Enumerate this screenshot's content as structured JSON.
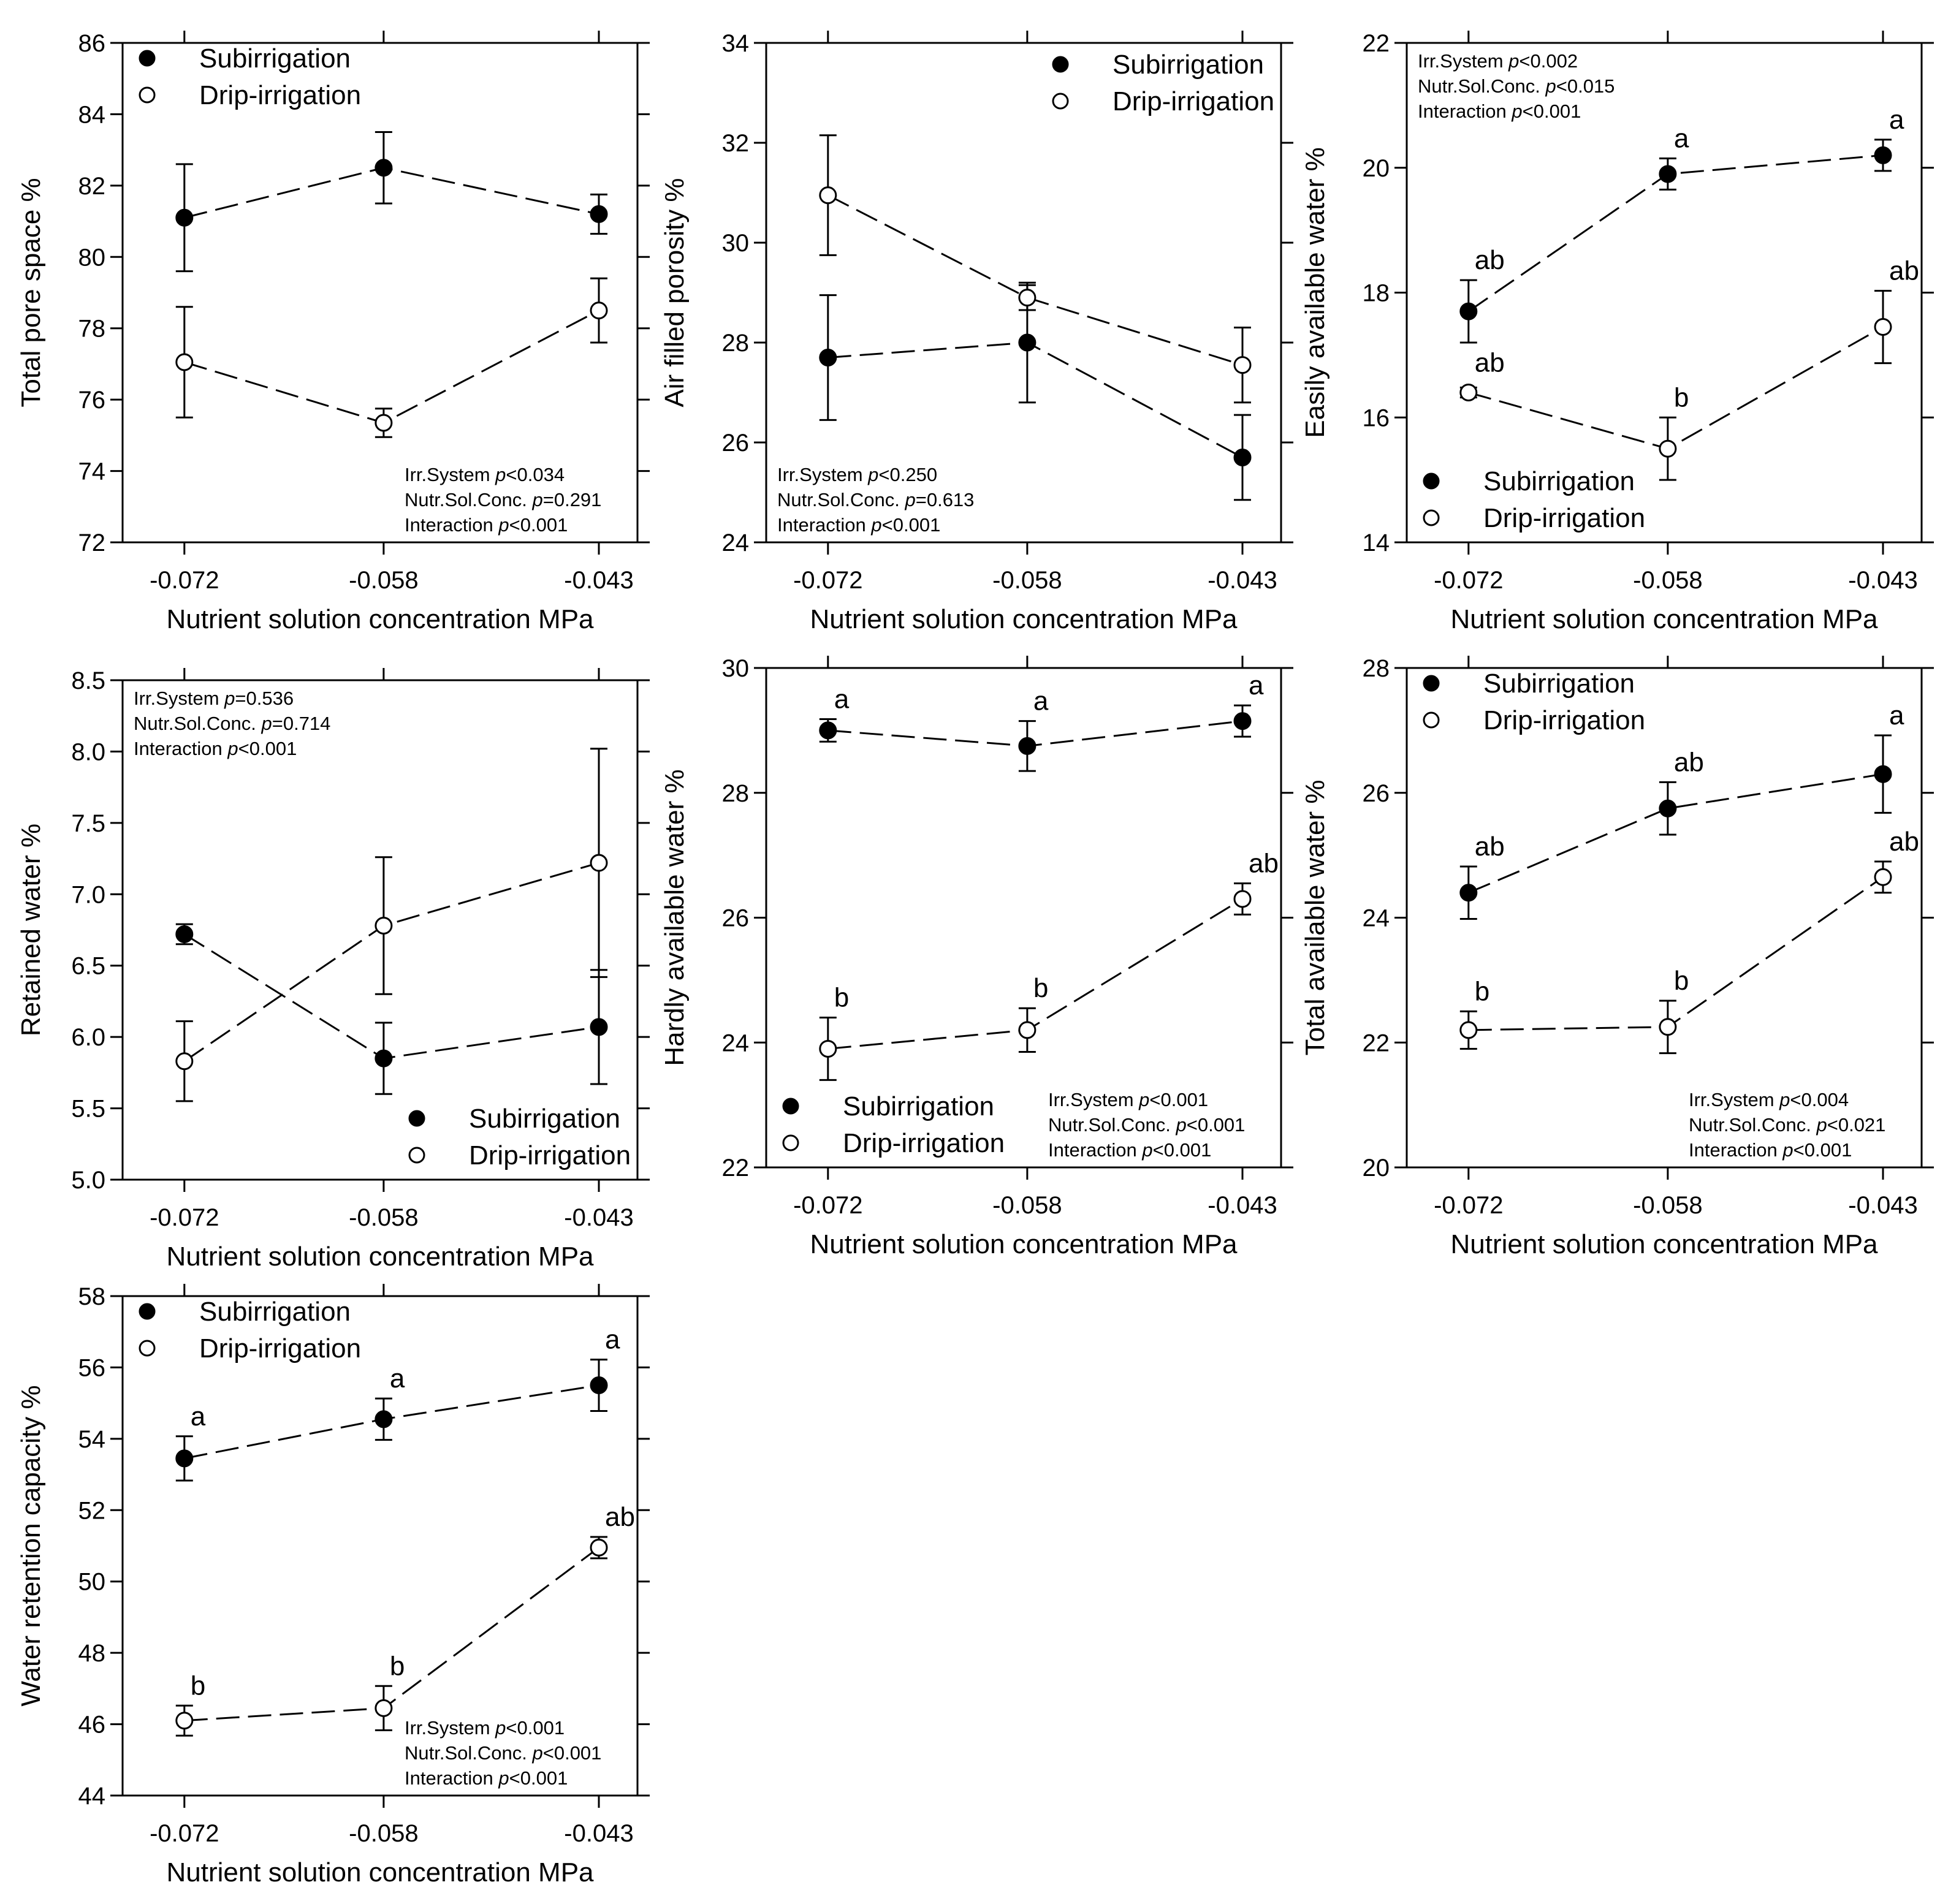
{
  "chart_data": [
    {
      "id": "tps",
      "type": "line",
      "title": "",
      "xlabel": "Nutrient solution concentration MPa",
      "ylabel": "Total pore space %",
      "categories": [
        "-0.072",
        "-0.058",
        "-0.043"
      ],
      "ylim": [
        72,
        86
      ],
      "yticks": [
        72,
        74,
        76,
        78,
        80,
        82,
        84,
        86
      ],
      "ytick_labels": [
        "72",
        "74",
        "76",
        "78",
        "80",
        "82",
        "84",
        "86"
      ],
      "legend": {
        "position": "top-left",
        "entries": [
          "Subirrigation",
          "Drip-irrigation"
        ]
      },
      "series": [
        {
          "name": "Subirrigation",
          "marker": "filled",
          "values": [
            81.1,
            82.5,
            81.2
          ],
          "errors": [
            1.5,
            1.0,
            0.55
          ],
          "letters": [
            "",
            "",
            ""
          ]
        },
        {
          "name": "Drip-irrigation",
          "marker": "open",
          "values": [
            77.05,
            75.35,
            78.5
          ],
          "errors": [
            1.55,
            0.4,
            0.9
          ],
          "letters": [
            "",
            "",
            ""
          ]
        }
      ],
      "stats": {
        "position": "bottom-right",
        "lines": [
          {
            "prefix": "Irr.System ",
            "p": "p",
            "suffix": "<0.034"
          },
          {
            "prefix": "Nutr.Sol.Conc. ",
            "p": "p",
            "suffix": "=0.291"
          },
          {
            "prefix": "Interaction ",
            "p": "p",
            "suffix": "<0.001"
          }
        ]
      }
    },
    {
      "id": "afp",
      "type": "line",
      "title": "",
      "xlabel": "Nutrient solution concentration MPa",
      "ylabel": "Air filled porosity %",
      "categories": [
        "-0.072",
        "-0.058",
        "-0.043"
      ],
      "ylim": [
        24,
        34
      ],
      "yticks": [
        24,
        26,
        28,
        30,
        32,
        34
      ],
      "ytick_labels": [
        "24",
        "26",
        "28",
        "30",
        "32",
        "34"
      ],
      "legend": {
        "position": "top-right",
        "entries": [
          "Subirrigation",
          "Drip-irrigation"
        ]
      },
      "series": [
        {
          "name": "Subirrigation",
          "marker": "filled",
          "values": [
            27.7,
            28.0,
            25.7
          ],
          "errors": [
            1.25,
            1.2,
            0.85
          ],
          "letters": [
            "",
            "",
            ""
          ]
        },
        {
          "name": "Drip-irrigation",
          "marker": "open",
          "values": [
            30.95,
            28.9,
            27.55
          ],
          "errors": [
            1.2,
            0.25,
            0.75
          ],
          "letters": [
            "",
            "",
            ""
          ]
        }
      ],
      "stats": {
        "position": "bottom-left",
        "lines": [
          {
            "prefix": "Irr.System ",
            "p": "p",
            "suffix": "<0.250"
          },
          {
            "prefix": "Nutr.Sol.Conc. ",
            "p": "p",
            "suffix": "=0.613"
          },
          {
            "prefix": "Interaction ",
            "p": "p",
            "suffix": "<0.001"
          }
        ]
      }
    },
    {
      "id": "eaw",
      "type": "line",
      "title": "",
      "xlabel": "Nutrient solution concentration MPa",
      "ylabel": "Easily available water %",
      "categories": [
        "-0.072",
        "-0.058",
        "-0.043"
      ],
      "ylim": [
        14,
        22
      ],
      "yticks": [
        14,
        16,
        18,
        20,
        22
      ],
      "ytick_labels": [
        "14",
        "16",
        "18",
        "20",
        "22"
      ],
      "legend": {
        "position": "bottom-left",
        "entries": [
          "Subirrigation",
          "Drip-irrigation"
        ]
      },
      "series": [
        {
          "name": "Subirrigation",
          "marker": "filled",
          "values": [
            17.7,
            19.9,
            20.2
          ],
          "errors": [
            0.5,
            0.25,
            0.25
          ],
          "letters": [
            "ab",
            "a",
            "a"
          ]
        },
        {
          "name": "Drip-irrigation",
          "marker": "open",
          "values": [
            16.4,
            15.5,
            17.45
          ],
          "errors": [
            0.08,
            0.5,
            0.58
          ],
          "letters": [
            "ab",
            "b",
            "ab"
          ]
        }
      ],
      "stats": {
        "position": "top-left",
        "lines": [
          {
            "prefix": "Irr.System ",
            "p": "p",
            "suffix": "<0.002"
          },
          {
            "prefix": "Nutr.Sol.Conc. ",
            "p": "p",
            "suffix": "<0.015"
          },
          {
            "prefix": "Interaction ",
            "p": "p",
            "suffix": "<0.001"
          }
        ]
      }
    },
    {
      "id": "rw",
      "type": "line",
      "title": "",
      "xlabel": "Nutrient solution concentration MPa",
      "ylabel": "Retained water %",
      "categories": [
        "-0.072",
        "-0.058",
        "-0.043"
      ],
      "ylim": [
        5.0,
        8.5
      ],
      "yticks": [
        5.0,
        5.5,
        6.0,
        6.5,
        7.0,
        7.5,
        8.0,
        8.5
      ],
      "ytick_labels": [
        "5.0",
        "5.5",
        "6.0",
        "6.5",
        "7.0",
        "7.5",
        "8.0",
        "8.5"
      ],
      "legend": {
        "position": "bottom-right",
        "entries": [
          "Subirrigation",
          "Drip-irrigation"
        ]
      },
      "series": [
        {
          "name": "Subirrigation",
          "marker": "filled",
          "values": [
            6.72,
            5.85,
            6.07
          ],
          "errors": [
            0.07,
            0.25,
            0.4
          ],
          "letters": [
            "",
            "",
            ""
          ]
        },
        {
          "name": "Drip-irrigation",
          "marker": "open",
          "values": [
            5.83,
            6.78,
            7.22
          ],
          "errors": [
            0.28,
            0.48,
            0.8
          ],
          "letters": [
            "",
            "",
            ""
          ]
        }
      ],
      "stats": {
        "position": "top-left",
        "lines": [
          {
            "prefix": "Irr.System ",
            "p": "p",
            "suffix": "=0.536"
          },
          {
            "prefix": "Nutr.Sol.Conc. ",
            "p": "p",
            "suffix": "=0.714"
          },
          {
            "prefix": "Interaction ",
            "p": "p",
            "suffix": "<0.001"
          }
        ]
      }
    },
    {
      "id": "haw",
      "type": "line",
      "title": "",
      "xlabel": "Nutrient solution concentration MPa",
      "ylabel": "Hardly available water %",
      "categories": [
        "-0.072",
        "-0.058",
        "-0.043"
      ],
      "ylim": [
        22,
        30
      ],
      "yticks": [
        22,
        24,
        26,
        28,
        30
      ],
      "ytick_labels": [
        "22",
        "24",
        "26",
        "28",
        "30"
      ],
      "legend": {
        "position": "bottom-left",
        "entries": [
          "Subirrigation",
          "Drip-irrigation"
        ]
      },
      "series": [
        {
          "name": "Subirrigation",
          "marker": "filled",
          "values": [
            29.0,
            28.75,
            29.15
          ],
          "errors": [
            0.18,
            0.4,
            0.25
          ],
          "letters": [
            "a",
            "a",
            "a"
          ]
        },
        {
          "name": "Drip-irrigation",
          "marker": "open",
          "values": [
            23.9,
            24.2,
            26.3
          ],
          "errors": [
            0.5,
            0.35,
            0.25
          ],
          "letters": [
            "b",
            "b",
            "ab"
          ]
        }
      ],
      "stats": {
        "position": "bottom-right",
        "lines": [
          {
            "prefix": "Irr.System ",
            "p": "p",
            "suffix": "<0.001"
          },
          {
            "prefix": "Nutr.Sol.Conc. ",
            "p": "p",
            "suffix": "<0.001"
          },
          {
            "prefix": "Interaction ",
            "p": "p",
            "suffix": "<0.001"
          }
        ]
      }
    },
    {
      "id": "taw",
      "type": "line",
      "title": "",
      "xlabel": "Nutrient solution concentration MPa",
      "ylabel": "Total available water %",
      "categories": [
        "-0.072",
        "-0.058",
        "-0.043"
      ],
      "ylim": [
        20,
        28
      ],
      "yticks": [
        20,
        22,
        24,
        26,
        28
      ],
      "ytick_labels": [
        "20",
        "22",
        "24",
        "26",
        "28"
      ],
      "legend": {
        "position": "top-left",
        "entries": [
          "Subirrigation",
          "Drip-irrigation"
        ]
      },
      "series": [
        {
          "name": "Subirrigation",
          "marker": "filled",
          "values": [
            24.4,
            25.75,
            26.3
          ],
          "errors": [
            0.42,
            0.42,
            0.62
          ],
          "letters": [
            "ab",
            "ab",
            "a"
          ]
        },
        {
          "name": "Drip-irrigation",
          "marker": "open",
          "values": [
            22.2,
            22.25,
            24.65
          ],
          "errors": [
            0.3,
            0.42,
            0.25
          ],
          "letters": [
            "b",
            "b",
            "ab"
          ]
        }
      ],
      "stats": {
        "position": "bottom-right",
        "lines": [
          {
            "prefix": "Irr.System ",
            "p": "p",
            "suffix": "<0.004"
          },
          {
            "prefix": "Nutr.Sol.Conc. ",
            "p": "p",
            "suffix": "<0.021"
          },
          {
            "prefix": "Interaction ",
            "p": "p",
            "suffix": "<0.001"
          }
        ]
      }
    },
    {
      "id": "wrc",
      "type": "line",
      "title": "",
      "xlabel": "Nutrient solution concentration MPa",
      "ylabel": "Water retention capacity %",
      "categories": [
        "-0.072",
        "-0.058",
        "-0.043"
      ],
      "ylim": [
        44,
        58
      ],
      "yticks": [
        44,
        46,
        48,
        50,
        52,
        54,
        56,
        58
      ],
      "ytick_labels": [
        "44",
        "46",
        "48",
        "50",
        "52",
        "54",
        "56",
        "58"
      ],
      "legend": {
        "position": "top-left",
        "entries": [
          "Subirrigation",
          "Drip-irrigation"
        ]
      },
      "series": [
        {
          "name": "Subirrigation",
          "marker": "filled",
          "values": [
            53.45,
            54.55,
            55.5
          ],
          "errors": [
            0.62,
            0.58,
            0.72
          ],
          "letters": [
            "a",
            "a",
            "a"
          ]
        },
        {
          "name": "Drip-irrigation",
          "marker": "open",
          "values": [
            46.1,
            46.45,
            50.95
          ],
          "errors": [
            0.42,
            0.62,
            0.3
          ],
          "letters": [
            "b",
            "b",
            "ab"
          ]
        }
      ],
      "stats": {
        "position": "bottom-right",
        "lines": [
          {
            "prefix": "Irr.System ",
            "p": "p",
            "suffix": "<0.001"
          },
          {
            "prefix": "Nutr.Sol.Conc. ",
            "p": "p",
            "suffix": "<0.001"
          },
          {
            "prefix": "Interaction ",
            "p": "p",
            "suffix": "<0.001"
          }
        ]
      }
    }
  ]
}
